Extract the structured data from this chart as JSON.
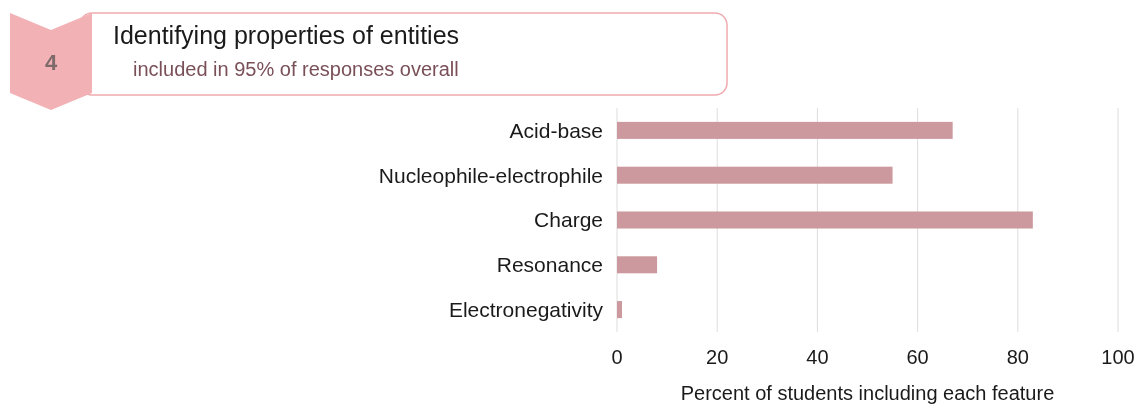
{
  "chart_data": {
    "type": "bar",
    "orientation": "horizontal",
    "title": "Identifying properties of entities",
    "subtitle": "included in 95% of responses overall",
    "annotations": [
      "4"
    ],
    "categories": [
      "Acid-base",
      "Nucleophile-electrophile",
      "Charge",
      "Resonance",
      "Electronegativity"
    ],
    "values": [
      67,
      55,
      83,
      8,
      1
    ],
    "color": "#cc999e",
    "xlim": [
      0,
      100
    ],
    "xticks": [
      0,
      20,
      40,
      60,
      80,
      100
    ],
    "xlabel": "Percent of students including each feature",
    "grid": "x"
  }
}
